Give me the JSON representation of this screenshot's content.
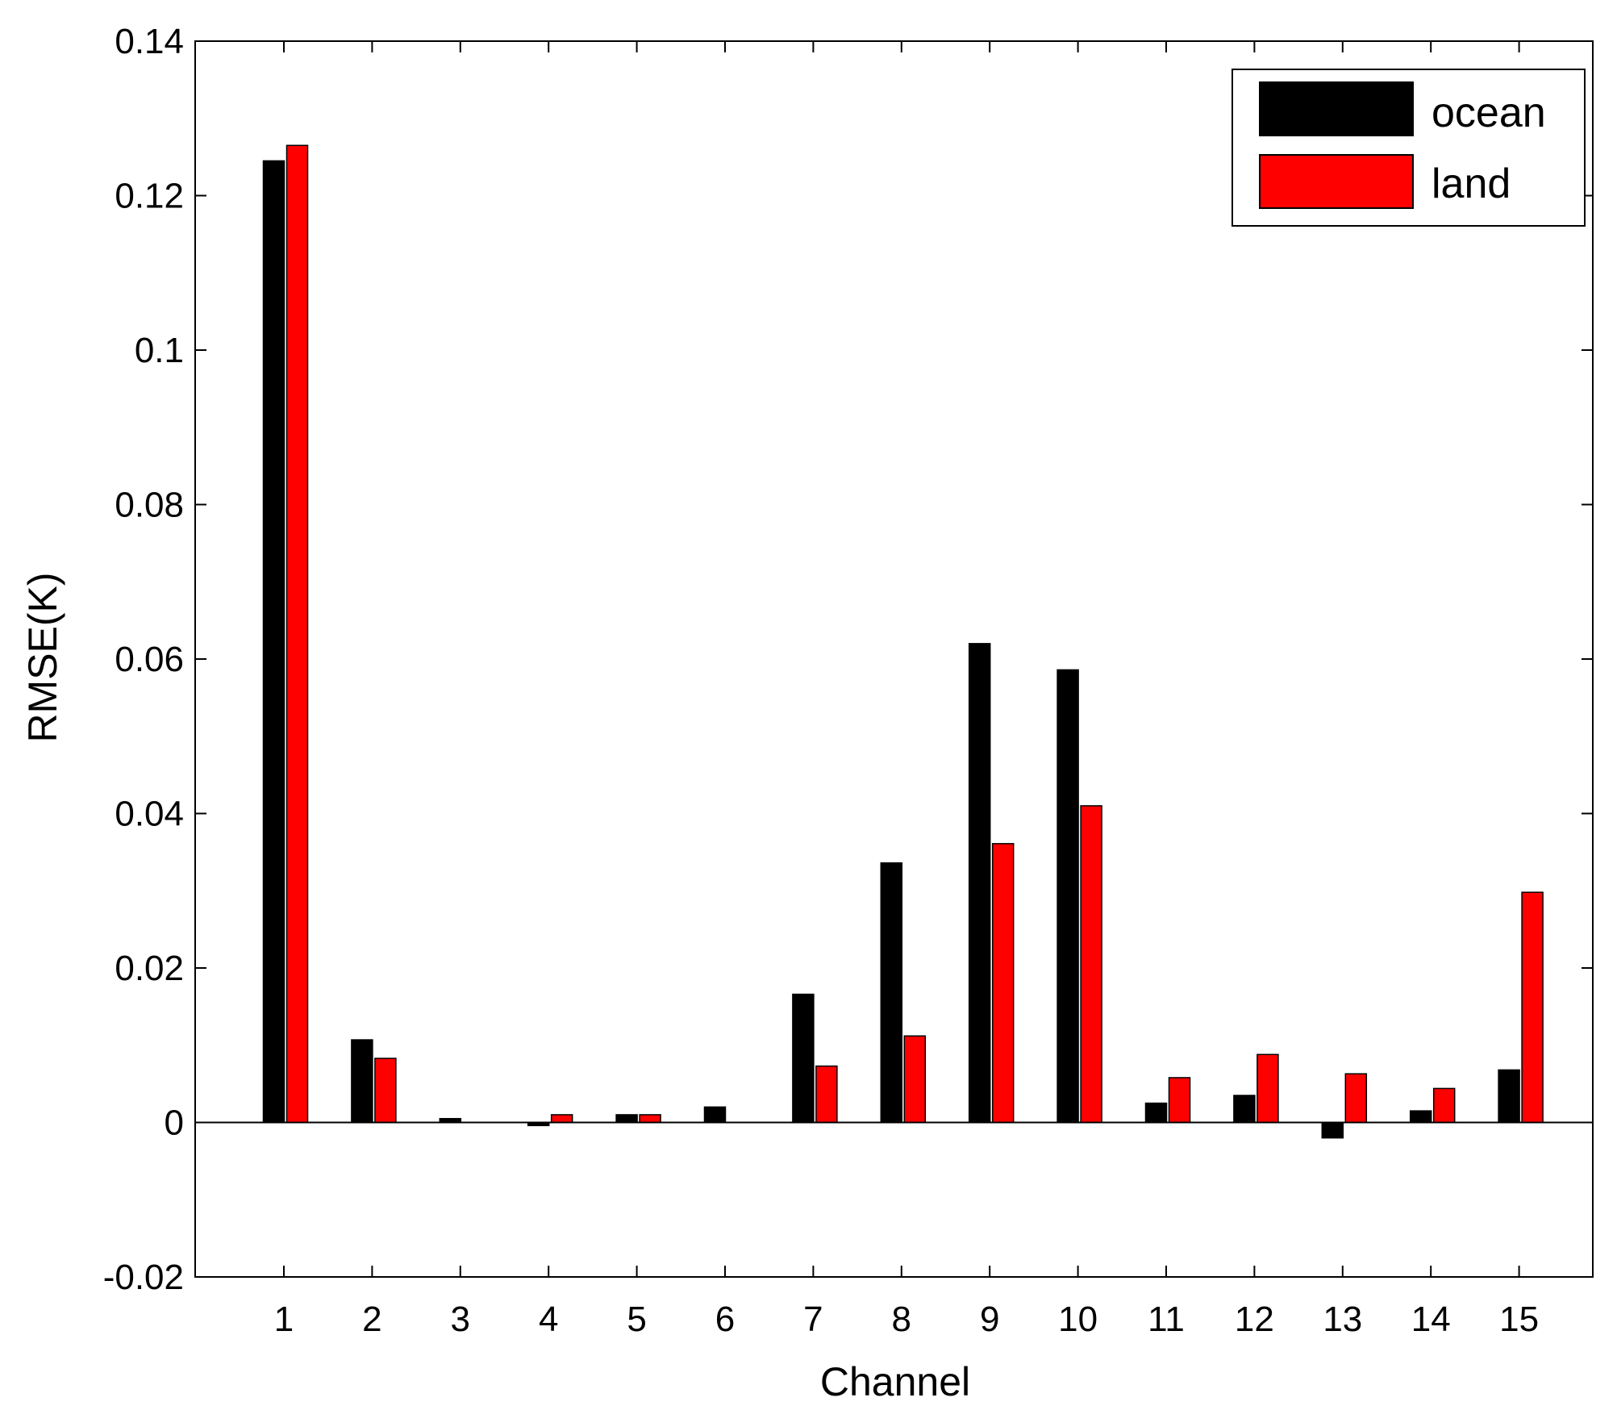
{
  "chart_data": {
    "type": "bar",
    "xlabel": "Channel",
    "ylabel": "RMSE(K)",
    "ylim": [
      -0.02,
      0.14
    ],
    "yticks": [
      -0.02,
      0,
      0.02,
      0.04,
      0.06,
      0.08,
      0.1,
      0.12,
      0.14
    ],
    "ytick_labels": [
      "-0.02",
      "0",
      "0.02",
      "0.04",
      "0.06",
      "0.08",
      "0.1",
      "0.12",
      "0.14"
    ],
    "categories": [
      "1",
      "2",
      "3",
      "4",
      "5",
      "6",
      "7",
      "8",
      "9",
      "10",
      "11",
      "12",
      "13",
      "14",
      "15"
    ],
    "series": [
      {
        "name": "ocean",
        "color": "#000000",
        "values": [
          0.1245,
          0.0107,
          0.0005,
          -0.0004,
          0.001,
          0.002,
          0.0166,
          0.0336,
          0.062,
          0.0586,
          0.0025,
          0.0035,
          -0.002,
          0.0015,
          0.0068
        ]
      },
      {
        "name": "land",
        "color": "#ff0000",
        "values": [
          0.1265,
          0.0083,
          0.0,
          0.001,
          0.001,
          0.0,
          0.0073,
          0.0112,
          0.0361,
          0.041,
          0.0058,
          0.0088,
          0.0063,
          0.0044,
          0.0298
        ]
      }
    ],
    "grid": false,
    "legend_position": "top-right"
  }
}
